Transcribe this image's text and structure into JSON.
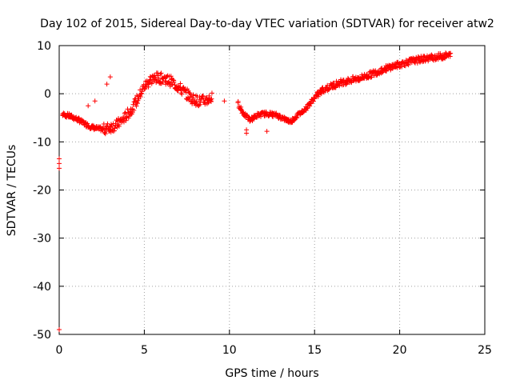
{
  "chart_data": {
    "type": "scatter",
    "title": "Day 102 of 2015, Sidereal Day-to-day VTEC variation (SDTVAR) for receiver atw2",
    "xlabel": "GPS time / hours",
    "ylabel": "SDTVAR / TECUs",
    "xlim": [
      0,
      25
    ],
    "ylim": [
      -50,
      10
    ],
    "xticks": [
      0,
      5,
      10,
      15,
      20,
      25
    ],
    "yticks": [
      -50,
      -40,
      -30,
      -20,
      -10,
      0,
      10
    ],
    "grid": true,
    "marker": "+",
    "color": "#ff0000",
    "series": [
      {
        "name": "SDTVAR",
        "trend": [
          [
            0.2,
            -4.3
          ],
          [
            0.6,
            -4.6
          ],
          [
            1.0,
            -5.2
          ],
          [
            1.4,
            -6.0
          ],
          [
            1.8,
            -6.8
          ],
          [
            2.2,
            -7.2
          ],
          [
            2.6,
            -7.4
          ],
          [
            3.0,
            -7.0
          ],
          [
            3.4,
            -6.4
          ],
          [
            3.8,
            -5.2
          ],
          [
            4.2,
            -3.5
          ],
          [
            4.6,
            -1.2
          ],
          [
            5.0,
            1.5
          ],
          [
            5.4,
            3.0
          ],
          [
            5.8,
            3.3
          ],
          [
            6.2,
            3.1
          ],
          [
            6.6,
            2.5
          ],
          [
            7.0,
            1.4
          ],
          [
            7.4,
            0.2
          ],
          [
            7.8,
            -1.0
          ],
          [
            8.2,
            -1.6
          ],
          [
            8.6,
            -1.4
          ],
          [
            9.0,
            -0.8
          ],
          [
            10.5,
            -2.0
          ],
          [
            10.8,
            -4.0
          ],
          [
            11.2,
            -5.5
          ],
          [
            11.6,
            -4.5
          ],
          [
            12.0,
            -4.2
          ],
          [
            12.4,
            -4.2
          ],
          [
            12.8,
            -4.5
          ],
          [
            13.2,
            -5.2
          ],
          [
            13.6,
            -5.8
          ],
          [
            14.0,
            -4.5
          ],
          [
            14.5,
            -3.0
          ],
          [
            15.0,
            -0.8
          ],
          [
            15.5,
            0.8
          ],
          [
            16.0,
            1.6
          ],
          [
            16.5,
            2.3
          ],
          [
            17.0,
            2.7
          ],
          [
            17.5,
            3.1
          ],
          [
            18.0,
            3.6
          ],
          [
            18.5,
            4.3
          ],
          [
            19.0,
            5.0
          ],
          [
            19.5,
            5.6
          ],
          [
            20.0,
            6.1
          ],
          [
            20.5,
            6.6
          ],
          [
            21.0,
            7.0
          ],
          [
            21.5,
            7.3
          ],
          [
            22.0,
            7.6
          ],
          [
            22.5,
            7.8
          ],
          [
            23.0,
            8.0
          ]
        ],
        "outliers": [
          [
            0.0,
            -13.5
          ],
          [
            0.0,
            -14.5
          ],
          [
            0.0,
            -15.5
          ],
          [
            0.0,
            -49.0
          ],
          [
            1.7,
            -2.5
          ],
          [
            2.1,
            -1.5
          ],
          [
            3.0,
            3.5
          ],
          [
            2.8,
            2.0
          ],
          [
            11.0,
            -7.5
          ],
          [
            11.0,
            -8.2
          ],
          [
            12.2,
            -7.8
          ],
          [
            9.7,
            -1.5
          ]
        ]
      }
    ]
  }
}
